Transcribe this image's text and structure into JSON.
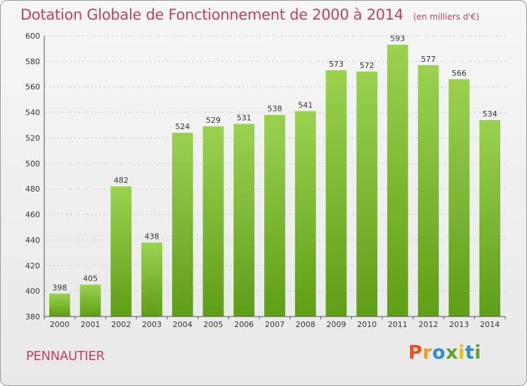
{
  "chart_data": {
    "type": "bar",
    "title": "Dotation Globale de Fonctionnement de 2000 à 2014",
    "unit_note": "(en milliers d'€)",
    "categories": [
      "2000",
      "2001",
      "2002",
      "2003",
      "2004",
      "2005",
      "2006",
      "2007",
      "2008",
      "2009",
      "2010",
      "2011",
      "2012",
      "2013",
      "2014"
    ],
    "values": [
      398,
      405,
      482,
      438,
      524,
      529,
      531,
      538,
      541,
      573,
      572,
      593,
      577,
      566,
      534
    ],
    "ylim": [
      380,
      600
    ],
    "yticks": [
      380,
      400,
      420,
      440,
      460,
      480,
      500,
      520,
      540,
      560,
      580,
      600
    ],
    "grid": true,
    "bar_color": "#7cc234"
  },
  "footer": {
    "commune": "PENNAUTIER",
    "brand_letters": [
      "P",
      "r",
      "o",
      "x",
      "i",
      "t",
      "i"
    ],
    "brand_colors": [
      "#e8501e",
      "#f39a1a",
      "#2f8ccf",
      "#5aa52a",
      "#e8c21a",
      "#2f8ccf",
      "#5aa52a"
    ]
  }
}
